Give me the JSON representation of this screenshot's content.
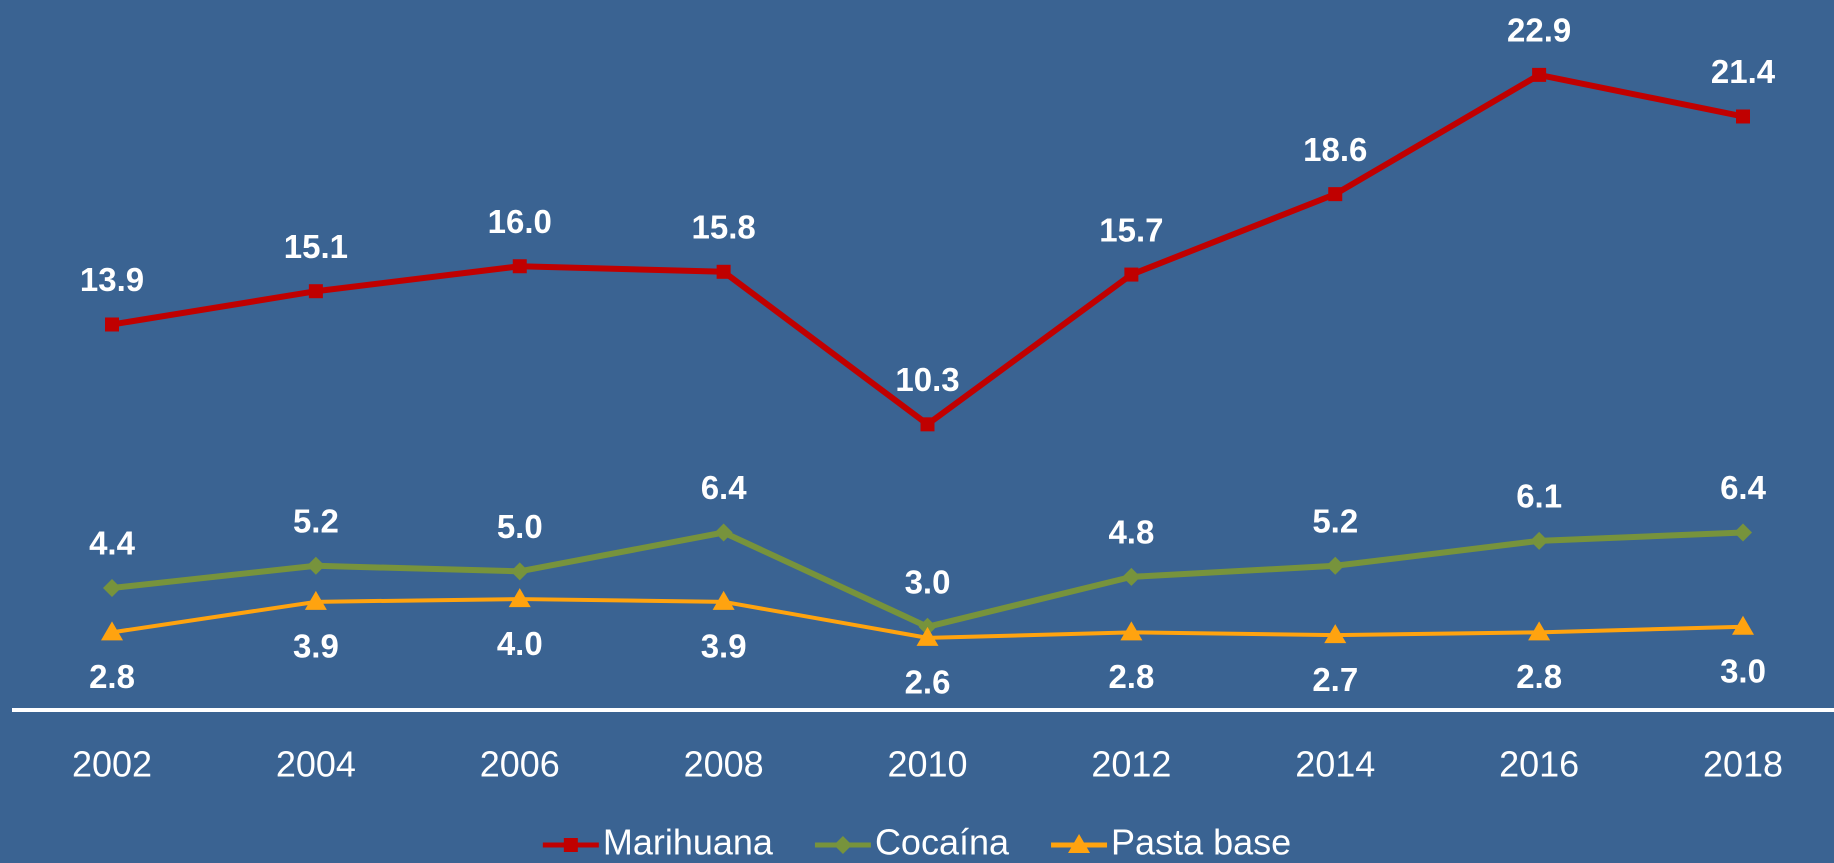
{
  "chart_data": {
    "type": "line",
    "categories": [
      "2002",
      "2004",
      "2006",
      "2008",
      "2010",
      "2012",
      "2014",
      "2016",
      "2018"
    ],
    "series": [
      {
        "name": "Marihuana",
        "color": "#c00000",
        "marker": "square",
        "label_position": "above",
        "values": [
          13.9,
          15.1,
          16.0,
          15.8,
          10.3,
          15.7,
          18.6,
          22.9,
          21.4
        ],
        "value_labels": [
          "13.9",
          "15.1",
          "16.0",
          "15.8",
          "10.3",
          "15.7",
          "18.6",
          "22.9",
          "21.4"
        ]
      },
      {
        "name": "Cocaína",
        "color": "#77933c",
        "marker": "diamond",
        "label_position": "above",
        "values": [
          4.4,
          5.2,
          5.0,
          6.4,
          3.0,
          4.8,
          5.2,
          6.1,
          6.4
        ],
        "value_labels": [
          "4.4",
          "5.2",
          "5.0",
          "6.4",
          "3.0",
          "4.8",
          "5.2",
          "6.1",
          "6.4"
        ]
      },
      {
        "name": "Pasta base",
        "color": "#ffa30f",
        "marker": "triangle",
        "label_position": "below",
        "values": [
          2.8,
          3.9,
          4.0,
          3.9,
          2.6,
          2.8,
          2.7,
          2.8,
          3.0
        ],
        "value_labels": [
          "2.8",
          "3.9",
          "4.0",
          "3.9",
          "2.6",
          "2.8",
          "2.7",
          "2.8",
          "3.0"
        ]
      }
    ],
    "ylim": [
      0,
      25.6
    ],
    "legend": "bottom"
  }
}
